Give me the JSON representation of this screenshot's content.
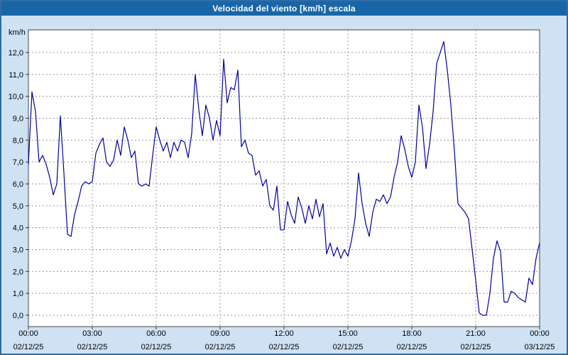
{
  "window": {
    "title": "Velocidad del viento [km/h] escala"
  },
  "colors": {
    "titlebar_bg": "#1866a8",
    "window_bg": "#cfe2f4",
    "window_border": "#2e6da4",
    "plot_bg": "#ffffff",
    "plot_border": "#444444",
    "grid": "#9a9a9a",
    "line": "#0000a0",
    "label_text": "#000000"
  },
  "chart_data": {
    "type": "line",
    "title": "Velocidad del viento [km/h] escala",
    "ylabel": "km/h",
    "xlabel": "",
    "ylim": [
      0,
      13
    ],
    "xlim_hours": [
      0,
      24
    ],
    "grid": true,
    "legend_position": "none",
    "sample_interval_minutes": 10,
    "y_ticks": [
      {
        "value": 0,
        "label": "0,0"
      },
      {
        "value": 1,
        "label": "1,0"
      },
      {
        "value": 2,
        "label": "2,0"
      },
      {
        "value": 3,
        "label": "3,0"
      },
      {
        "value": 4,
        "label": "4,0"
      },
      {
        "value": 5,
        "label": "5,0"
      },
      {
        "value": 6,
        "label": "6,0"
      },
      {
        "value": 7,
        "label": "7,0"
      },
      {
        "value": 8,
        "label": "8,0"
      },
      {
        "value": 9,
        "label": "9,0"
      },
      {
        "value": 10,
        "label": "10,0"
      },
      {
        "value": 11,
        "label": "11,0"
      },
      {
        "value": 12,
        "label": "12,0"
      }
    ],
    "x_ticks": [
      {
        "hour": 0,
        "time": "00:00",
        "date": "02/12/25"
      },
      {
        "hour": 3,
        "time": "03:00",
        "date": "02/12/25"
      },
      {
        "hour": 6,
        "time": "06:00",
        "date": "02/12/25"
      },
      {
        "hour": 9,
        "time": "09:00",
        "date": "02/12/25"
      },
      {
        "hour": 12,
        "time": "12:00",
        "date": "02/12/25"
      },
      {
        "hour": 15,
        "time": "15:00",
        "date": "02/12/25"
      },
      {
        "hour": 18,
        "time": "18:00",
        "date": "02/12/25"
      },
      {
        "hour": 21,
        "time": "21:00",
        "date": "02/12/25"
      },
      {
        "hour": 24,
        "time": "00:00",
        "date": "03/12/25"
      }
    ],
    "series": [
      {
        "name": "wind-speed-kmh",
        "values": [
          6.9,
          10.2,
          9.3,
          7.0,
          7.3,
          6.9,
          6.3,
          5.5,
          6.0,
          9.1,
          6.5,
          3.7,
          3.6,
          4.6,
          5.2,
          5.9,
          6.1,
          6.0,
          6.1,
          7.4,
          7.8,
          8.1,
          7.0,
          6.8,
          7.1,
          8.0,
          7.3,
          8.6,
          8.0,
          7.2,
          7.5,
          6.0,
          5.9,
          6.0,
          5.9,
          7.3,
          8.6,
          8.0,
          7.5,
          7.9,
          7.2,
          7.9,
          7.5,
          8.0,
          7.9,
          7.2,
          8.3,
          11.0,
          9.4,
          8.2,
          9.6,
          9.0,
          8.0,
          8.9,
          8.2,
          11.7,
          9.7,
          10.4,
          10.3,
          11.2,
          7.7,
          8.0,
          7.4,
          7.3,
          6.4,
          6.6,
          5.9,
          6.2,
          5.0,
          4.8,
          5.9,
          3.9,
          3.9,
          5.2,
          4.6,
          4.2,
          5.4,
          4.9,
          4.2,
          5.0,
          4.4,
          5.3,
          4.5,
          5.1,
          2.8,
          3.3,
          2.7,
          3.1,
          2.6,
          3.0,
          2.7,
          3.4,
          4.4,
          6.5,
          5.1,
          4.2,
          3.6,
          4.7,
          5.3,
          5.2,
          5.5,
          5.1,
          5.4,
          6.3,
          7.0,
          8.2,
          7.6,
          6.8,
          6.3,
          7.0,
          9.6,
          8.6,
          6.7,
          7.8,
          9.3,
          11.5,
          12.0,
          12.5,
          11.2,
          9.6,
          7.5,
          5.1,
          4.9,
          4.7,
          4.4,
          3.0,
          1.6,
          0.1,
          0.0,
          0.0,
          1.0,
          2.6,
          3.4,
          2.9,
          0.6,
          0.6,
          1.1,
          1.0,
          0.8,
          0.7,
          0.6,
          1.7,
          1.4,
          2.6,
          3.3
        ]
      }
    ]
  }
}
